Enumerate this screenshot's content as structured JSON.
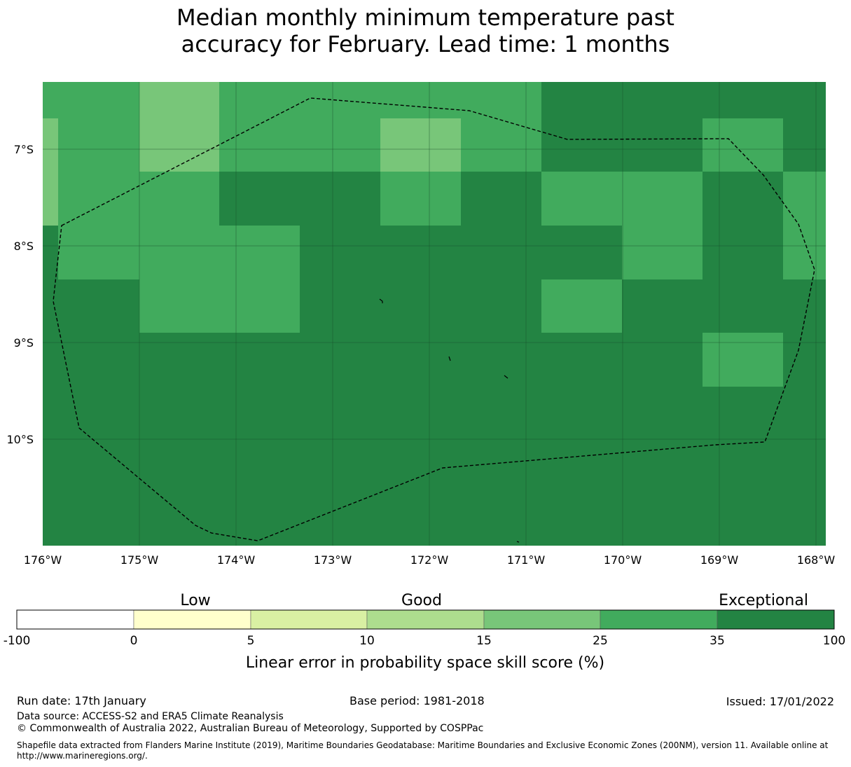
{
  "title": {
    "line1": "Median monthly minimum temperature past",
    "line2": "accuracy for February. Lead time: 1 months"
  },
  "map": {
    "lat_labels": [
      "7°S",
      "8°S",
      "9°S",
      "10°S"
    ],
    "lon_labels": [
      "176°W",
      "175°W",
      "174°W",
      "173°W",
      "172°W",
      "171°W",
      "170°W",
      "169°W",
      "168°W"
    ],
    "colors": {
      "exceptional": "#238443",
      "strong": "#41ab5d",
      "good": "#78c679",
      "gridline": "#1a4d2a",
      "boundary": "#000000"
    }
  },
  "legend": {
    "categories": [
      "Low",
      "Good",
      "Exceptional"
    ],
    "ticks": [
      "-100",
      "0",
      "5",
      "10",
      "15",
      "25",
      "35",
      "100"
    ],
    "bin_colors": [
      "#ffffff",
      "#ffffcc",
      "#d9f0a3",
      "#addd8e",
      "#78c679",
      "#41ab5d",
      "#238443"
    ],
    "axis_label": "Linear error in probability space skill score (%)"
  },
  "footer": {
    "run_date": "Run date: 17th January",
    "base_period": "Base period: 1981-2018",
    "issued": "Issued: 17/01/2022",
    "data_source": "Data source: ACCESS-S2 and ERA5 Climate Reanalysis",
    "copyright": "© Commonwealth of Australia 2022, Australian Bureau of Meteorology, Supported by COSPPac",
    "shapefile": "Shapefile data extracted from Flanders Marine Institute (2019), Maritime Boundaries Geodatabase: Maritime Boundaries and Exclusive Economic Zones (200NM), version 11. Available online at http://www.marineregions.org/."
  }
}
